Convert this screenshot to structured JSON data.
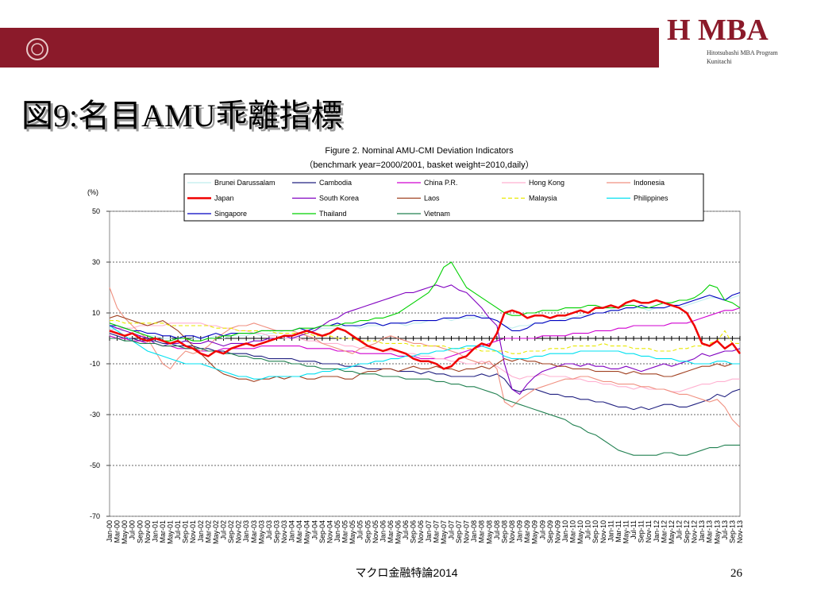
{
  "header": {
    "logo": "H MBA",
    "program": "Hitotsubashi MBA Program",
    "campus": "Kunitachi"
  },
  "slide_title": "図9:名目AMU乖離指標",
  "footer": {
    "course": "マクロ金融特論2014",
    "page": "26"
  },
  "chart_data": {
    "type": "line",
    "title": "Figure 2. Nominal AMU-CMI Deviation Indicators",
    "subtitle": "（benchmark year=2000/2001, basket weight=2010,daily）",
    "y_label": "(%)",
    "categories": [
      "Jan-00",
      "Mar-00",
      "May-00",
      "Jul-00",
      "Sep-00",
      "Nov-00",
      "Jan-01",
      "Mar-01",
      "May-01",
      "Jul-01",
      "Sep-01",
      "Nov-01",
      "Jan-02",
      "Mar-02",
      "May-02",
      "Jul-02",
      "Sep-02",
      "Nov-02",
      "Jan-03",
      "Mar-03",
      "May-03",
      "Jul-03",
      "Sep-03",
      "Nov-03",
      "Jan-04",
      "Mar-04",
      "May-04",
      "Jul-04",
      "Sep-04",
      "Nov-04",
      "Jan-05",
      "Mar-05",
      "May-05",
      "Jul-05",
      "Sep-05",
      "Nov-05",
      "Jan-06",
      "Mar-06",
      "May-06",
      "Jul-06",
      "Sep-06",
      "Nov-06",
      "Jan-07",
      "Mar-07",
      "May-07",
      "Jul-07",
      "Sep-07",
      "Nov-07",
      "Jan-08",
      "Mar-08",
      "May-08",
      "Jul-08",
      "Sep-08",
      "Nov-08",
      "Jan-09",
      "Mar-09",
      "May-09",
      "Jul-09",
      "Sep-09",
      "Nov-09",
      "Jan-10",
      "Mar-10",
      "May-10",
      "Jul-10",
      "Sep-10",
      "Nov-10",
      "Jan-11",
      "Mar-11",
      "May-11",
      "Jul-11",
      "Sep-11",
      "Nov-11",
      "Jan-12",
      "Mar-12",
      "May-12",
      "Jul-12",
      "Sep-12",
      "Nov-12",
      "Jan-13",
      "Mar-13",
      "May-13",
      "Jul-13",
      "Sep-13",
      "Nov-13"
    ],
    "ylim": [
      -70,
      50
    ],
    "yticks": [
      50,
      30,
      10,
      -10,
      -30,
      -50,
      -70
    ],
    "grid": true,
    "series": [
      {
        "name": "Brunei Darussalam",
        "color": "#bfeeee",
        "values": [
          4,
          3,
          3,
          2,
          2,
          1,
          1,
          0,
          0,
          -1,
          -1,
          0,
          0,
          0,
          1,
          0,
          1,
          1,
          1,
          2,
          1,
          2,
          2,
          3,
          3,
          2,
          3,
          3,
          4,
          4,
          4,
          5,
          5,
          4,
          5,
          5,
          5,
          6,
          6,
          5,
          6,
          6,
          7,
          7,
          8,
          7,
          8,
          8,
          8,
          9,
          8,
          7,
          5,
          4,
          5,
          5,
          6,
          6,
          7,
          7,
          8,
          8,
          9,
          9,
          10,
          10,
          11,
          11,
          12,
          12,
          12,
          11,
          12,
          12,
          13,
          12,
          13,
          14,
          15,
          16,
          16,
          15,
          16,
          17
        ]
      },
      {
        "name": "Cambodia",
        "color": "#202080",
        "values": [
          2,
          1,
          0,
          0,
          -1,
          -1,
          -1,
          -2,
          -2,
          -3,
          -3,
          -3,
          -4,
          -4,
          -5,
          -5,
          -6,
          -6,
          -6,
          -7,
          -7,
          -8,
          -8,
          -8,
          -8,
          -9,
          -9,
          -9,
          -10,
          -10,
          -10,
          -11,
          -11,
          -11,
          -12,
          -12,
          -12,
          -12,
          -13,
          -13,
          -13,
          -14,
          -13,
          -14,
          -14,
          -15,
          -15,
          -15,
          -15,
          -14,
          -15,
          -14,
          -16,
          -20,
          -21,
          -20,
          -20,
          -21,
          -22,
          -22,
          -23,
          -23,
          -24,
          -24,
          -25,
          -25,
          -26,
          -27,
          -27,
          -28,
          -27,
          -28,
          -27,
          -26,
          -26,
          -27,
          -27,
          -26,
          -25,
          -24,
          -22,
          -23,
          -21,
          -20
        ]
      },
      {
        "name": "China P.R.",
        "color": "#d000d0",
        "values": [
          1,
          0,
          0,
          -1,
          -1,
          -2,
          -2,
          -3,
          -3,
          -4,
          -4,
          -4,
          -5,
          -5,
          -5,
          -4,
          -4,
          -4,
          -4,
          -4,
          -3,
          -3,
          -3,
          -3,
          -3,
          -3,
          -4,
          -4,
          -4,
          -4,
          -5,
          -5,
          -5,
          -6,
          -6,
          -6,
          -6,
          -6,
          -7,
          -7,
          -7,
          -8,
          -8,
          -8,
          -8,
          -7,
          -6,
          -5,
          -4,
          -3,
          -2,
          -1,
          0,
          0,
          0,
          0,
          0,
          1,
          1,
          1,
          1,
          2,
          2,
          2,
          3,
          3,
          3,
          4,
          4,
          5,
          5,
          5,
          5,
          5,
          6,
          6,
          6,
          7,
          8,
          9,
          10,
          11,
          11,
          12
        ]
      },
      {
        "name": "Hong Kong",
        "color": "#ffb0d0",
        "values": [
          3,
          4,
          4,
          4,
          5,
          5,
          5,
          5,
          6,
          6,
          6,
          6,
          6,
          5,
          5,
          4,
          4,
          3,
          3,
          2,
          2,
          1,
          1,
          0,
          0,
          0,
          -1,
          -1,
          -2,
          -2,
          -2,
          -3,
          -3,
          -4,
          -4,
          -4,
          -5,
          -5,
          -5,
          -6,
          -6,
          -7,
          -7,
          -8,
          -8,
          -9,
          -9,
          -10,
          -10,
          -9,
          -10,
          -11,
          -13,
          -15,
          -16,
          -15,
          -15,
          -14,
          -15,
          -15,
          -15,
          -16,
          -16,
          -17,
          -17,
          -18,
          -18,
          -19,
          -19,
          -20,
          -19,
          -20,
          -20,
          -20,
          -21,
          -21,
          -20,
          -19,
          -18,
          -18,
          -17,
          -17,
          -16,
          -16
        ]
      },
      {
        "name": "Indonesia",
        "color": "#f09080",
        "values": [
          20,
          12,
          8,
          5,
          2,
          0,
          -5,
          -10,
          -12,
          -8,
          -5,
          -6,
          -5,
          -3,
          0,
          2,
          4,
          5,
          5,
          6,
          5,
          4,
          3,
          3,
          3,
          2,
          1,
          0,
          -2,
          -3,
          -4,
          -5,
          -6,
          -4,
          -3,
          -2,
          0,
          1,
          0,
          -1,
          -2,
          -2,
          -3,
          -3,
          -4,
          -5,
          -6,
          -8,
          -9,
          -10,
          -9,
          -12,
          -25,
          -27,
          -24,
          -22,
          -20,
          -19,
          -18,
          -17,
          -16,
          -16,
          -15,
          -15,
          -16,
          -17,
          -17,
          -18,
          -18,
          -18,
          -19,
          -19,
          -20,
          -20,
          -21,
          -22,
          -22,
          -23,
          -24,
          -25,
          -24,
          -27,
          -32,
          -35
        ]
      },
      {
        "name": "Japan",
        "color": "#f00000",
        "values": [
          3,
          2,
          1,
          2,
          0,
          -1,
          0,
          -1,
          -2,
          -1,
          -3,
          -4,
          -6,
          -7,
          -5,
          -6,
          -4,
          -3,
          -2,
          -3,
          -2,
          -1,
          0,
          1,
          1,
          2,
          3,
          2,
          1,
          2,
          4,
          3,
          1,
          -1,
          -3,
          -4,
          -5,
          -4,
          -5,
          -6,
          -8,
          -9,
          -9,
          -10,
          -12,
          -11,
          -8,
          -7,
          -4,
          -2,
          -3,
          2,
          10,
          11,
          10,
          8,
          9,
          9,
          8,
          9,
          9,
          10,
          11,
          10,
          12,
          12,
          13,
          12,
          14,
          15,
          14,
          14,
          15,
          14,
          13,
          12,
          10,
          5,
          -2,
          -3,
          -1,
          -4,
          -2,
          -6
        ]
      },
      {
        "name": "South Korea",
        "color": "#8000c0",
        "values": [
          5,
          4,
          3,
          2,
          1,
          0,
          -2,
          -3,
          -2,
          -2,
          -1,
          -2,
          -2,
          -1,
          -2,
          -3,
          -2,
          -2,
          -2,
          -1,
          -1,
          0,
          0,
          1,
          0,
          1,
          2,
          3,
          5,
          7,
          8,
          10,
          11,
          12,
          13,
          14,
          15,
          16,
          17,
          18,
          18,
          19,
          20,
          21,
          20,
          21,
          19,
          18,
          15,
          12,
          8,
          5,
          -10,
          -20,
          -22,
          -18,
          -15,
          -13,
          -12,
          -11,
          -10,
          -10,
          -11,
          -10,
          -11,
          -11,
          -12,
          -12,
          -11,
          -12,
          -13,
          -12,
          -11,
          -10,
          -11,
          -10,
          -9,
          -8,
          -6,
          -7,
          -6,
          -5,
          -5,
          -4
        ]
      },
      {
        "name": "Laos",
        "color": "#a04020",
        "values": [
          8,
          9,
          8,
          7,
          6,
          5,
          6,
          7,
          5,
          3,
          0,
          -3,
          -6,
          -9,
          -12,
          -14,
          -15,
          -16,
          -16,
          -17,
          -16,
          -16,
          -15,
          -16,
          -15,
          -15,
          -16,
          -16,
          -15,
          -15,
          -15,
          -16,
          -16,
          -14,
          -13,
          -13,
          -12,
          -12,
          -13,
          -12,
          -11,
          -12,
          -12,
          -11,
          -12,
          -12,
          -13,
          -12,
          -12,
          -11,
          -12,
          -10,
          -8,
          -9,
          -8,
          -9,
          -9,
          -10,
          -10,
          -11,
          -11,
          -12,
          -12,
          -12,
          -13,
          -13,
          -13,
          -13,
          -14,
          -13,
          -14,
          -14,
          -14,
          -15,
          -15,
          -14,
          -13,
          -12,
          -11,
          -11,
          -10,
          -11,
          -10,
          -10
        ]
      },
      {
        "name": "Malaysia",
        "color": "#e8e800",
        "values": [
          7,
          7,
          6,
          6,
          6,
          6,
          6,
          6,
          5,
          5,
          5,
          5,
          5,
          5,
          4,
          4,
          4,
          3,
          3,
          3,
          3,
          3,
          2,
          2,
          2,
          2,
          2,
          1,
          1,
          1,
          0,
          0,
          0,
          -1,
          -1,
          -1,
          -2,
          -2,
          -2,
          -2,
          -3,
          -3,
          -3,
          -3,
          -3,
          -4,
          -4,
          -4,
          -4,
          -5,
          -5,
          -5,
          -5,
          -6,
          -6,
          -5,
          -5,
          -5,
          -4,
          -4,
          -4,
          -3,
          -3,
          -3,
          -3,
          -2,
          -3,
          -3,
          -3,
          -4,
          -4,
          -4,
          -5,
          -5,
          -5,
          -4,
          -4,
          -3,
          -3,
          -2,
          -1,
          3,
          -2,
          -2
        ]
      },
      {
        "name": "Philippines",
        "color": "#00e0f0",
        "values": [
          5,
          3,
          1,
          -1,
          -3,
          -5,
          -6,
          -7,
          -8,
          -9,
          -10,
          -10,
          -10,
          -11,
          -12,
          -13,
          -14,
          -15,
          -15,
          -16,
          -16,
          -15,
          -15,
          -15,
          -15,
          -15,
          -14,
          -14,
          -13,
          -13,
          -12,
          -12,
          -11,
          -10,
          -10,
          -9,
          -9,
          -8,
          -8,
          -7,
          -7,
          -6,
          -6,
          -5,
          -5,
          -4,
          -4,
          -3,
          -3,
          -3,
          -4,
          -5,
          -7,
          -8,
          -8,
          -8,
          -7,
          -7,
          -6,
          -6,
          -6,
          -6,
          -5,
          -5,
          -5,
          -5,
          -5,
          -5,
          -6,
          -6,
          -7,
          -7,
          -8,
          -8,
          -8,
          -9,
          -9,
          -10,
          -10,
          -10,
          -9,
          -9,
          -10,
          -10
        ]
      },
      {
        "name": "Singapore",
        "color": "#0000c0",
        "values": [
          5,
          5,
          4,
          3,
          3,
          2,
          2,
          1,
          1,
          0,
          1,
          1,
          0,
          1,
          2,
          1,
          2,
          2,
          2,
          2,
          3,
          3,
          3,
          3,
          3,
          4,
          3,
          4,
          5,
          5,
          6,
          5,
          5,
          5,
          6,
          6,
          5,
          6,
          6,
          6,
          7,
          7,
          7,
          7,
          8,
          8,
          8,
          9,
          9,
          8,
          8,
          7,
          5,
          3,
          3,
          4,
          6,
          6,
          7,
          7,
          7,
          8,
          8,
          9,
          10,
          10,
          11,
          11,
          12,
          12,
          13,
          12,
          12,
          12,
          13,
          13,
          14,
          15,
          16,
          17,
          16,
          15,
          17,
          18
        ]
      },
      {
        "name": "Thailand",
        "color": "#00d000",
        "values": [
          6,
          5,
          4,
          3,
          2,
          1,
          0,
          -1,
          -1,
          0,
          0,
          -1,
          -1,
          0,
          0,
          1,
          1,
          2,
          2,
          2,
          3,
          3,
          3,
          3,
          3,
          4,
          4,
          4,
          5,
          5,
          5,
          6,
          6,
          7,
          7,
          8,
          8,
          9,
          10,
          12,
          14,
          16,
          18,
          22,
          28,
          30,
          25,
          20,
          18,
          16,
          14,
          12,
          10,
          9,
          9,
          10,
          10,
          11,
          11,
          11,
          12,
          12,
          12,
          13,
          13,
          12,
          12,
          12,
          13,
          13,
          12,
          12,
          13,
          14,
          14,
          15,
          15,
          16,
          18,
          21,
          20,
          15,
          14,
          12
        ]
      },
      {
        "name": "Vietnam",
        "color": "#208050",
        "values": [
          0,
          0,
          -1,
          -1,
          -2,
          -2,
          -2,
          -3,
          -3,
          -3,
          -4,
          -4,
          -4,
          -5,
          -5,
          -6,
          -6,
          -7,
          -7,
          -8,
          -8,
          -9,
          -9,
          -9,
          -10,
          -10,
          -11,
          -11,
          -12,
          -12,
          -12,
          -13,
          -13,
          -14,
          -14,
          -14,
          -15,
          -15,
          -15,
          -16,
          -16,
          -16,
          -16,
          -17,
          -17,
          -18,
          -18,
          -19,
          -19,
          -20,
          -21,
          -22,
          -24,
          -25,
          -26,
          -27,
          -28,
          -29,
          -30,
          -31,
          -32,
          -34,
          -35,
          -37,
          -38,
          -40,
          -42,
          -44,
          -45,
          -46,
          -46,
          -46,
          -46,
          -45,
          -45,
          -46,
          -46,
          -45,
          -44,
          -43,
          -43,
          -42,
          -42,
          -42
        ]
      }
    ]
  }
}
